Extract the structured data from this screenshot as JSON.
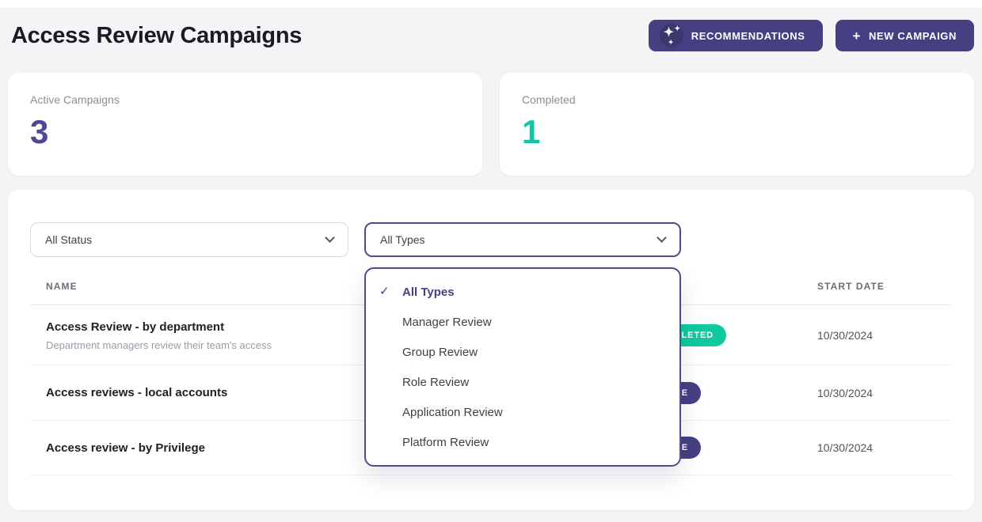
{
  "page": {
    "title": "Access Review Campaigns"
  },
  "header": {
    "recommendations_button": "RECOMMENDATIONS",
    "new_campaign_button": "NEW CAMPAIGN",
    "new_campaign_plus": "+"
  },
  "icons": {
    "sparkles": "✦",
    "sparkles_small": "✦",
    "check": "✓"
  },
  "stats": [
    {
      "label": "Active Campaigns",
      "value": "3",
      "color": "#4b4896"
    },
    {
      "label": "Completed",
      "value": "1",
      "color": "#10c9a1"
    }
  ],
  "filters": {
    "status_value": "All Status",
    "type_value": "All Types"
  },
  "type_dropdown": {
    "selected": "All Types",
    "options": [
      "All Types",
      "Manager Review",
      "Group Review",
      "Role Review",
      "Application Review",
      "Platform Review"
    ]
  },
  "table": {
    "headers": {
      "name": "NAME",
      "start_date": "START DATE"
    },
    "rows": [
      {
        "name": "Access Review - by department",
        "description": "Department managers review their team's access",
        "status": "COMPLETED",
        "status_color": "#10c99e",
        "date": "10/30/2024"
      },
      {
        "name": "Access reviews - local accounts",
        "status": "ACTIVE",
        "status_color": "#454082",
        "date": "10/30/2024"
      },
      {
        "name": "Access review - by Privilege",
        "status": "ACTIVE",
        "status_color": "#454082",
        "date": "10/30/2024"
      }
    ]
  },
  "colors": {
    "accent_indigo": "#454082",
    "teal": "#10c99e",
    "background": "#f4f4f6"
  }
}
